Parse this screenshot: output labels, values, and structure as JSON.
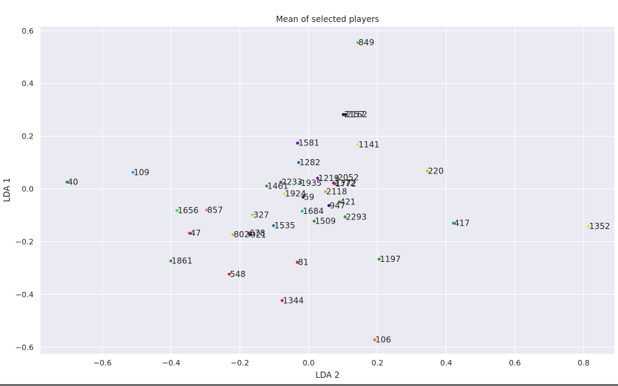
{
  "chart_data": {
    "type": "scatter",
    "title": "Mean of selected players",
    "xlabel": "LDA 2",
    "ylabel": "LDA 1",
    "xlim": [
      -0.78,
      0.89
    ],
    "ylim": [
      -0.625,
      0.615
    ],
    "xticks": [
      -0.6,
      -0.4,
      -0.2,
      0.0,
      0.2,
      0.4,
      0.6,
      0.8
    ],
    "yticks": [
      -0.6,
      -0.4,
      -0.2,
      0.0,
      0.2,
      0.4,
      0.6
    ],
    "xtick_labels": [
      "−0.6",
      "−0.4",
      "−0.2",
      "0.0",
      "0.2",
      "0.4",
      "0.6",
      "0.8"
    ],
    "ytick_labels": [
      "−0.6",
      "−0.4",
      "−0.2",
      "0.0",
      "0.2",
      "0.4",
      "0.6"
    ],
    "grid": true,
    "background": "#eaeaf2",
    "points": [
      {
        "label": "849",
        "x": 0.143,
        "y": 0.555,
        "color": "#33e633"
      },
      {
        "label": "2157",
        "x": 0.101,
        "y": 0.282,
        "color": "#111111"
      },
      {
        "label": "2162",
        "x": 0.108,
        "y": 0.282,
        "color": "#222222"
      },
      {
        "label": "1581",
        "x": -0.032,
        "y": 0.174,
        "color": "#6a0dad"
      },
      {
        "label": "1141",
        "x": 0.143,
        "y": 0.168,
        "color": "#e6e633"
      },
      {
        "label": "1282",
        "x": -0.029,
        "y": 0.1,
        "color": "#1f77b4"
      },
      {
        "label": "220",
        "x": 0.345,
        "y": 0.068,
        "color": "#e6c000"
      },
      {
        "label": "109",
        "x": -0.511,
        "y": 0.063,
        "color": "#2a9df4"
      },
      {
        "label": "2052",
        "x": 0.083,
        "y": 0.043,
        "color": "#2ca02c"
      },
      {
        "label": "1219",
        "x": 0.026,
        "y": 0.041,
        "color": "#8c1aa0"
      },
      {
        "label": "40",
        "x": -0.703,
        "y": 0.026,
        "color": "#2ca02c"
      },
      {
        "label": "2233",
        "x": -0.081,
        "y": 0.026,
        "color": "#8040b0"
      },
      {
        "label": "1935",
        "x": -0.025,
        "y": 0.022,
        "color": "#20c0a0"
      },
      {
        "label": "1372",
        "x": 0.073,
        "y": 0.022,
        "color": "#3a0ca3"
      },
      {
        "label": "1772",
        "x": 0.076,
        "y": 0.02,
        "color": "#d62728"
      },
      {
        "label": "1461",
        "x": -0.122,
        "y": 0.011,
        "color": "#2ca02c"
      },
      {
        "label": "2118",
        "x": 0.049,
        "y": -0.01,
        "color": "#ff9f1c"
      },
      {
        "label": "1924",
        "x": -0.071,
        "y": -0.018,
        "color": "#e6e633"
      },
      {
        "label": "59",
        "x": -0.016,
        "y": -0.031,
        "color": "#1a1a8c"
      },
      {
        "label": "421",
        "x": 0.089,
        "y": -0.049,
        "color": "#2ca02c"
      },
      {
        "label": "947",
        "x": 0.059,
        "y": -0.063,
        "color": "#3a0ca3"
      },
      {
        "label": "1656",
        "x": -0.383,
        "y": -0.082,
        "color": "#33e633"
      },
      {
        "label": "857",
        "x": -0.297,
        "y": -0.08,
        "color": "#e377c2"
      },
      {
        "label": "1684",
        "x": -0.019,
        "y": -0.084,
        "color": "#17becf"
      },
      {
        "label": "327",
        "x": -0.163,
        "y": -0.098,
        "color": "#a0e633"
      },
      {
        "label": "2293",
        "x": 0.106,
        "y": -0.106,
        "color": "#2ca02c"
      },
      {
        "label": "1509",
        "x": 0.016,
        "y": -0.122,
        "color": "#2ca02c"
      },
      {
        "label": "417",
        "x": 0.421,
        "y": -0.13,
        "color": "#17a0a0"
      },
      {
        "label": "1535",
        "x": -0.102,
        "y": -0.139,
        "color": "#1f77b4"
      },
      {
        "label": "1352",
        "x": 0.814,
        "y": -0.142,
        "color": "#e6e633"
      },
      {
        "label": "47",
        "x": -0.346,
        "y": -0.168,
        "color": "#d62728"
      },
      {
        "label": "678",
        "x": -0.174,
        "y": -0.167,
        "color": "#d62728"
      },
      {
        "label": "802",
        "x": -0.22,
        "y": -0.173,
        "color": "#ff9f1c"
      },
      {
        "label": "921",
        "x": -0.171,
        "y": -0.174,
        "color": "#1a1a8c"
      },
      {
        "label": "1861",
        "x": -0.401,
        "y": -0.273,
        "color": "#2ca02c"
      },
      {
        "label": "1197",
        "x": 0.205,
        "y": -0.266,
        "color": "#2ca02c"
      },
      {
        "label": "81",
        "x": -0.033,
        "y": -0.278,
        "color": "#d62728"
      },
      {
        "label": "548",
        "x": -0.231,
        "y": -0.323,
        "color": "#d62728"
      },
      {
        "label": "1344",
        "x": -0.077,
        "y": -0.423,
        "color": "#d62728"
      },
      {
        "label": "106",
        "x": 0.192,
        "y": -0.572,
        "color": "#ff6a1c"
      }
    ]
  }
}
